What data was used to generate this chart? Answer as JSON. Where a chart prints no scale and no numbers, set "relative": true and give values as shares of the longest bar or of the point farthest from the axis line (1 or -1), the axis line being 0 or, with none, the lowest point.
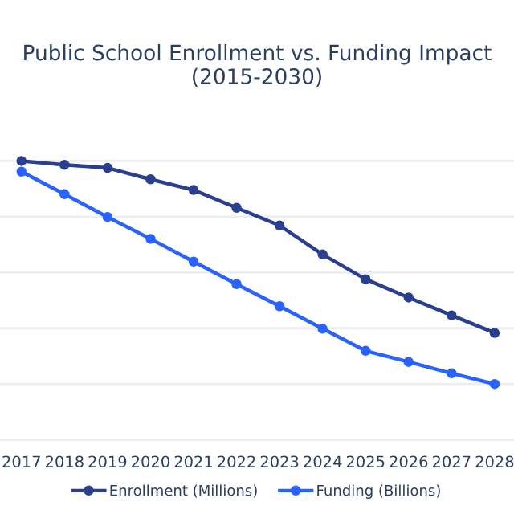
{
  "chart_data": {
    "type": "line",
    "title": "Public School Enrollment vs. Funding Impact\n(2015-2030)",
    "relative": true,
    "x": [
      2017,
      2018,
      2019,
      2020,
      2021,
      2022,
      2023,
      2024,
      2025,
      2026,
      2027,
      2028
    ],
    "xlim": [
      2016.5,
      2028.45
    ],
    "xticks": [
      2017,
      2018,
      2019,
      2020,
      2021,
      2022,
      2023,
      2024,
      2025,
      2026,
      2027,
      2028
    ],
    "series": [
      {
        "name": "Enrollment (Millions)",
        "color": "#2a3f8f",
        "values": [
          1.0,
          0.983,
          0.969,
          0.918,
          0.87,
          0.79,
          0.711,
          0.581,
          0.47,
          0.388,
          0.308,
          0.229
        ]
      },
      {
        "name": "Funding (Billions)",
        "color": "#2962ff",
        "values": [
          0.952,
          0.851,
          0.749,
          0.651,
          0.549,
          0.448,
          0.349,
          0.248,
          0.149,
          0.099,
          0.048,
          0.0
        ]
      }
    ],
    "marker": "circle",
    "line_style": "solid",
    "grid": "y",
    "legend": "bottom"
  }
}
